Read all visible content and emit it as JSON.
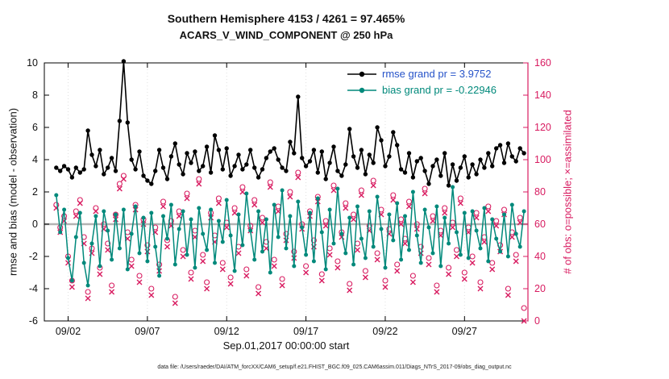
{
  "figure": {
    "caption": "data file: /Users/raeder/DAI/ATM_forcXX/CAM6_setup/f.e21.FHIST_BGC.f09_025.CAM6assim.011/Diags_NTrS_2017-09/obs_diag_output.nc"
  },
  "chart_data": {
    "type": "line",
    "title": "Southern Hemisphere 4153 / 4261 = 97.465%",
    "subtitle": "ACARS_V_WIND_COMPONENT @ 250 hPa",
    "xlabel": "Sep.01,2017 00:00:00 start",
    "ylabel_left": "rmse and bias (model - observation)",
    "ylabel_right": "# of obs: o=possible; ×=assimilated",
    "stats": {
      "assimilated_total": 4153,
      "possible_total": 4261,
      "percent": "97.465%",
      "rmse_grand": 3.9752,
      "bias_grand": -0.22946
    },
    "xlim": [
      -0.5,
      30
    ],
    "ylim_left": [
      -6,
      10
    ],
    "ylim_right": [
      0,
      160
    ],
    "xticks": {
      "pos": [
        1,
        6,
        11,
        16,
        21,
        26
      ],
      "labels": [
        "09/02",
        "09/07",
        "09/12",
        "09/17",
        "09/22",
        "09/27"
      ]
    },
    "yticks_left": [
      -6,
      -4,
      -2,
      0,
      2,
      4,
      6,
      8,
      10
    ],
    "yticks_right": [
      0,
      20,
      40,
      60,
      80,
      100,
      120,
      140,
      160
    ],
    "colors": {
      "rmse": "#000000",
      "bias": "#00897b",
      "obs": "#d81b60",
      "zero_line": "#b3b3b3",
      "legend_rmse_text": "#2653c9",
      "legend_bias_text": "#00897b",
      "grid": "#e0e0e0"
    },
    "x": {
      "first": 0.25,
      "step": 0.25,
      "count": 119
    },
    "series": [
      {
        "name": "rmse grand pr = 3.9752",
        "axis": "left",
        "marker": "dot",
        "color": "#000000",
        "values": [
          3.5,
          3.3,
          3.6,
          3.4,
          2.9,
          3.5,
          3.2,
          3.4,
          5.8,
          4.3,
          3.6,
          4.6,
          3.1,
          3.5,
          4.1,
          3.3,
          6.4,
          10.1,
          6.3,
          4.0,
          3.4,
          4.5,
          3.0,
          2.7,
          2.5,
          3.3,
          4.6,
          3.5,
          2.8,
          4.2,
          5.0,
          3.7,
          3.1,
          4.4,
          3.8,
          4.5,
          3.3,
          3.6,
          4.8,
          3.2,
          5.5,
          4.6,
          3.4,
          4.7,
          3.0,
          3.6,
          4.3,
          3.4,
          3.7,
          4.6,
          3.5,
          2.9,
          3.4,
          4.1,
          4.5,
          4.7,
          4.0,
          3.5,
          3.3,
          5.1,
          4.4,
          7.9,
          4.1,
          3.6,
          3.9,
          4.6,
          3.2,
          4.5,
          2.8,
          3.8,
          4.8,
          3.3,
          3.0,
          3.7,
          5.9,
          4.2,
          3.5,
          4.6,
          3.1,
          4.3,
          3.8,
          6.0,
          5.2,
          3.6,
          4.2,
          5.7,
          4.9,
          3.4,
          3.2,
          4.4,
          2.9,
          3.9,
          4.1,
          3.3,
          2.5,
          3.6,
          4.0,
          3.0,
          4.4,
          2.4,
          3.7,
          2.7,
          3.5,
          4.2,
          2.9,
          3.7,
          3.1,
          4.0,
          3.5,
          4.4,
          3.6,
          4.7,
          4.9,
          3.8,
          5.0,
          4.2,
          3.9,
          4.7,
          4.4
        ]
      },
      {
        "name": "bias grand pr = -0.22946",
        "axis": "left",
        "marker": "dot",
        "color": "#00897b",
        "values": [
          1.8,
          -0.5,
          0.9,
          -2.1,
          -3.5,
          -0.8,
          0.7,
          -2.4,
          -3.8,
          -1.2,
          0.5,
          -2.6,
          0.8,
          -0.4,
          -2.2,
          0.6,
          -1.5,
          0.9,
          -2.8,
          -0.6,
          1.1,
          -1.8,
          0.4,
          -2.3,
          0.7,
          -1.4,
          -3.2,
          0.5,
          -0.9,
          1.2,
          -2.5,
          -0.3,
          0.8,
          -1.9,
          0.3,
          -2.7,
          1.0,
          -0.6,
          -1.6,
          0.9,
          -2.4,
          0.2,
          -1.1,
          1.5,
          -0.7,
          -2.9,
          0.6,
          -1.3,
          1.9,
          -0.4,
          -2.2,
          0.8,
          -1.7,
          0.3,
          -3.0,
          1.2,
          -0.8,
          2.1,
          -1.5,
          0.5,
          -2.6,
          1.4,
          -0.2,
          -1.9,
          0.7,
          -2.3,
          1.6,
          -0.5,
          -2.8,
          0.9,
          -1.2,
          2.2,
          -0.6,
          -1.8,
          0.4,
          -2.5,
          1.1,
          -0.9,
          -2.1,
          0.8,
          -1.4,
          1.7,
          -0.3,
          -2.7,
          0.6,
          -1.0,
          1.3,
          -2.2,
          0.5,
          -1.6,
          2.0,
          -0.7,
          -2.4,
          0.9,
          -0.2,
          -1.8,
          1.1,
          -2.6,
          0.4,
          -1.2,
          2.3,
          -0.5,
          -1.9,
          0.7,
          -2.1,
          0.8,
          -0.4,
          -1.5,
          1.0,
          -2.3,
          0.3,
          -0.9,
          -1.7,
          0.6,
          -2.0,
          1.2,
          -0.6,
          -1.4,
          0.8
        ]
      },
      {
        "name": "possible",
        "axis": "right",
        "marker": "circle",
        "color": "#d81b60",
        "values": [
          72,
          58,
          65,
          40,
          25,
          68,
          75,
          52,
          18,
          45,
          70,
          33,
          60,
          48,
          22,
          66,
          85,
          90,
          55,
          38,
          72,
          28,
          63,
          47,
          20,
          58,
          35,
          74,
          50,
          62,
          15,
          68,
          44,
          79,
          30,
          56,
          88,
          41,
          24,
          67,
          53,
          76,
          36,
          61,
          27,
          70,
          46,
          83,
          32,
          59,
          75,
          21,
          64,
          49,
          86,
          38,
          71,
          26,
          54,
          80,
          43,
          92,
          60,
          34,
          68,
          50,
          77,
          29,
          62,
          45,
          84,
          37,
          55,
          73,
          23,
          66,
          48,
          81,
          31,
          59,
          87,
          42,
          69,
          25,
          57,
          78,
          35,
          63,
          51,
          74,
          28,
          60,
          46,
          82,
          39,
          65,
          22,
          56,
          70,
          33,
          61,
          44,
          76,
          30,
          58,
          40,
          67,
          24,
          52,
          71,
          36,
          62,
          47,
          69,
          20,
          55,
          41,
          64,
          8
        ]
      },
      {
        "name": "assimilated",
        "axis": "right",
        "marker": "x",
        "color": "#d81b60",
        "values": [
          70,
          55,
          62,
          36,
          21,
          65,
          73,
          48,
          14,
          42,
          68,
          29,
          57,
          44,
          18,
          63,
          82,
          88,
          51,
          34,
          69,
          24,
          60,
          43,
          16,
          55,
          31,
          71,
          46,
          59,
          11,
          65,
          40,
          76,
          26,
          52,
          85,
          37,
          20,
          64,
          49,
          73,
          32,
          58,
          23,
          67,
          42,
          80,
          28,
          56,
          72,
          17,
          61,
          45,
          83,
          34,
          68,
          22,
          50,
          77,
          39,
          89,
          57,
          30,
          65,
          46,
          74,
          25,
          59,
          41,
          81,
          33,
          52,
          70,
          19,
          63,
          44,
          78,
          27,
          56,
          84,
          38,
          66,
          21,
          54,
          75,
          31,
          60,
          48,
          71,
          24,
          57,
          42,
          79,
          35,
          62,
          18,
          53,
          67,
          29,
          58,
          40,
          73,
          26,
          55,
          36,
          64,
          20,
          49,
          68,
          32,
          59,
          43,
          66,
          16,
          52,
          37,
          61,
          0
        ]
      }
    ]
  }
}
